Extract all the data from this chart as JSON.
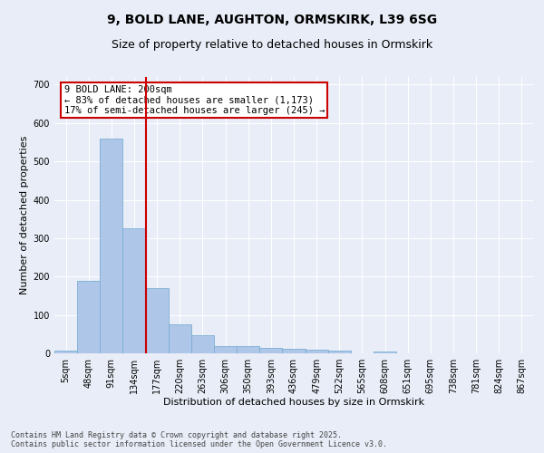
{
  "title1": "9, BOLD LANE, AUGHTON, ORMSKIRK, L39 6SG",
  "title2": "Size of property relative to detached houses in Ormskirk",
  "xlabel": "Distribution of detached houses by size in Ormskirk",
  "ylabel": "Number of detached properties",
  "categories": [
    "5sqm",
    "48sqm",
    "91sqm",
    "134sqm",
    "177sqm",
    "220sqm",
    "263sqm",
    "306sqm",
    "350sqm",
    "393sqm",
    "436sqm",
    "479sqm",
    "522sqm",
    "565sqm",
    "608sqm",
    "651sqm",
    "695sqm",
    "738sqm",
    "781sqm",
    "824sqm",
    "867sqm"
  ],
  "values": [
    8,
    190,
    560,
    325,
    170,
    75,
    48,
    20,
    20,
    15,
    12,
    10,
    8,
    0,
    5,
    0,
    0,
    0,
    0,
    0,
    0
  ],
  "bar_color": "#aec6e8",
  "bar_edge_color": "#7aafd4",
  "vline_color": "#cc0000",
  "annotation_text": "9 BOLD LANE: 200sqm\n← 83% of detached houses are smaller (1,173)\n17% of semi-detached houses are larger (245) →",
  "annotation_box_color": "#ffffff",
  "annotation_box_edge_color": "#cc0000",
  "ylim": [
    0,
    720
  ],
  "yticks": [
    0,
    100,
    200,
    300,
    400,
    500,
    600,
    700
  ],
  "bg_color": "#e8edf7",
  "plot_bg_color": "#e8edf7",
  "footnote": "Contains HM Land Registry data © Crown copyright and database right 2025.\nContains public sector information licensed under the Open Government Licence v3.0.",
  "footnote_fontsize": 6.0,
  "title_fontsize": 10,
  "subtitle_fontsize": 9,
  "xlabel_fontsize": 8,
  "ylabel_fontsize": 8,
  "tick_fontsize": 7,
  "annot_fontsize": 7.5
}
